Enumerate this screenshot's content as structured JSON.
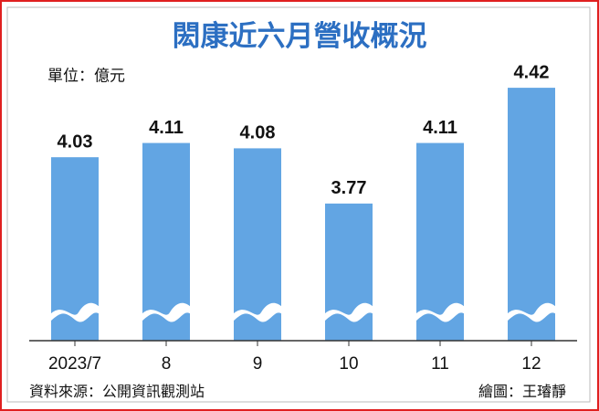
{
  "chart_data": {
    "type": "bar",
    "title": "閎康近六月營收概況",
    "unit": "單位：億元",
    "categories": [
      "2023/7",
      "8",
      "9",
      "10",
      "11",
      "12"
    ],
    "values": [
      4.03,
      4.11,
      4.08,
      3.77,
      4.11,
      4.42
    ],
    "color": "#62a5e3",
    "ylim": [
      3,
      4.5
    ],
    "source": "資料來源：公開資訊觀測站",
    "credit": "繪圖：王璿靜"
  }
}
